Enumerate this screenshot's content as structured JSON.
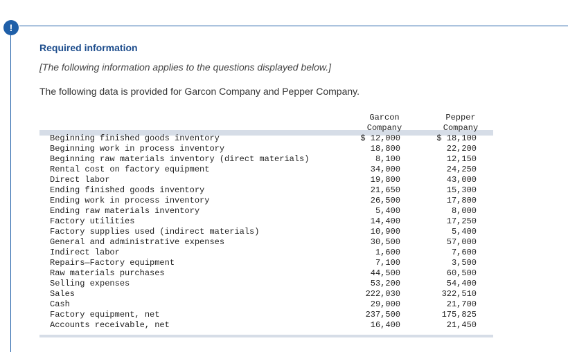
{
  "header": {
    "icon": "!",
    "title": "Required information",
    "note": "[The following information applies to the questions displayed below.]",
    "intro": "The following data is provided for Garcon Company and Pepper Company."
  },
  "table": {
    "columns": [
      "Garcon Company",
      "Pepper Company"
    ],
    "rows": [
      [
        "Beginning finished goods inventory",
        "$ 12,000",
        "$ 18,100"
      ],
      [
        "Beginning work in process inventory",
        "18,800",
        "22,200"
      ],
      [
        "Beginning raw materials inventory (direct materials)",
        "8,100",
        "12,150"
      ],
      [
        "Rental cost on factory equipment",
        "34,000",
        "24,250"
      ],
      [
        "Direct labor",
        "19,800",
        "43,000"
      ],
      [
        "Ending finished goods inventory",
        "21,650",
        "15,300"
      ],
      [
        "Ending work in process inventory",
        "26,500",
        "17,800"
      ],
      [
        "Ending raw materials inventory",
        "5,400",
        "8,000"
      ],
      [
        "Factory utilities",
        "14,400",
        "17,250"
      ],
      [
        "Factory supplies used (indirect materials)",
        "10,900",
        "5,400"
      ],
      [
        "General and administrative expenses",
        "30,500",
        "57,000"
      ],
      [
        "Indirect labor",
        "1,600",
        "7,600"
      ],
      [
        "Repairs—Factory equipment",
        "7,100",
        "3,500"
      ],
      [
        "Raw materials purchases",
        "44,500",
        "60,500"
      ],
      [
        "Selling expenses",
        "53,200",
        "54,400"
      ],
      [
        "Sales",
        "222,030",
        "322,510"
      ],
      [
        "Cash",
        "29,000",
        "21,700"
      ],
      [
        "Factory equipment, net",
        "237,500",
        "175,825"
      ],
      [
        "Accounts receivable, net",
        "16,400",
        "21,450"
      ]
    ]
  }
}
